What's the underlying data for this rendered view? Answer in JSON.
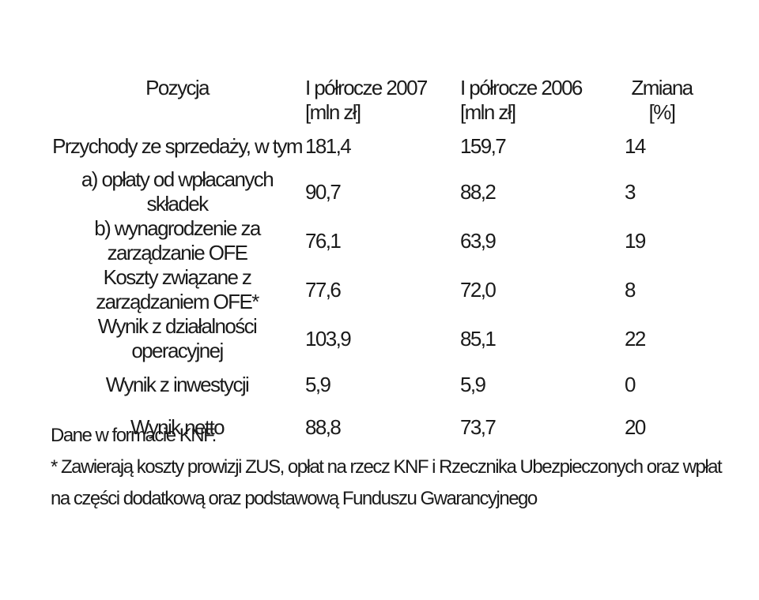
{
  "table": {
    "headers": {
      "position": "Pozycja",
      "h1_2007": "I półrocze 2007 [mln zł]",
      "h1_2006": "I półrocze 2006 [mln zł]",
      "change": "Zmiana [%]"
    },
    "rows": [
      {
        "label": "Przychody ze sprzedaży, w tym",
        "v2007": "181,4",
        "v2006": "159,7",
        "change": "14"
      },
      {
        "label": "a) opłaty od wpłacanych składek",
        "v2007": "90,7",
        "v2006": "88,2",
        "change": "3"
      },
      {
        "label": "b) wynagrodzenie za zarządzanie OFE",
        "v2007": "76,1",
        "v2006": "63,9",
        "change": "19"
      },
      {
        "label": "Koszty związane z zarządzaniem OFE*",
        "v2007": "77,6",
        "v2006": "72,0",
        "change": "8"
      },
      {
        "label": "Wynik z działalności operacyjnej",
        "v2007": "103,9",
        "v2006": "85,1",
        "change": "22"
      },
      {
        "label": "Wynik z inwestycji",
        "v2007": "5,9",
        "v2006": "5,9",
        "change": "0"
      },
      {
        "label": "Wynik netto",
        "v2007": "88,8",
        "v2006": "73,7",
        "change": "20"
      }
    ]
  },
  "notes": {
    "source": "Dane w formacie KNF.",
    "footnote": "* Zawierają koszty prowizji ZUS, opłat na rzecz KNF i Rzecznika Ubezpieczonych oraz wpłat na części dodatkową oraz podstawową Funduszu Gwarancyjnego"
  }
}
